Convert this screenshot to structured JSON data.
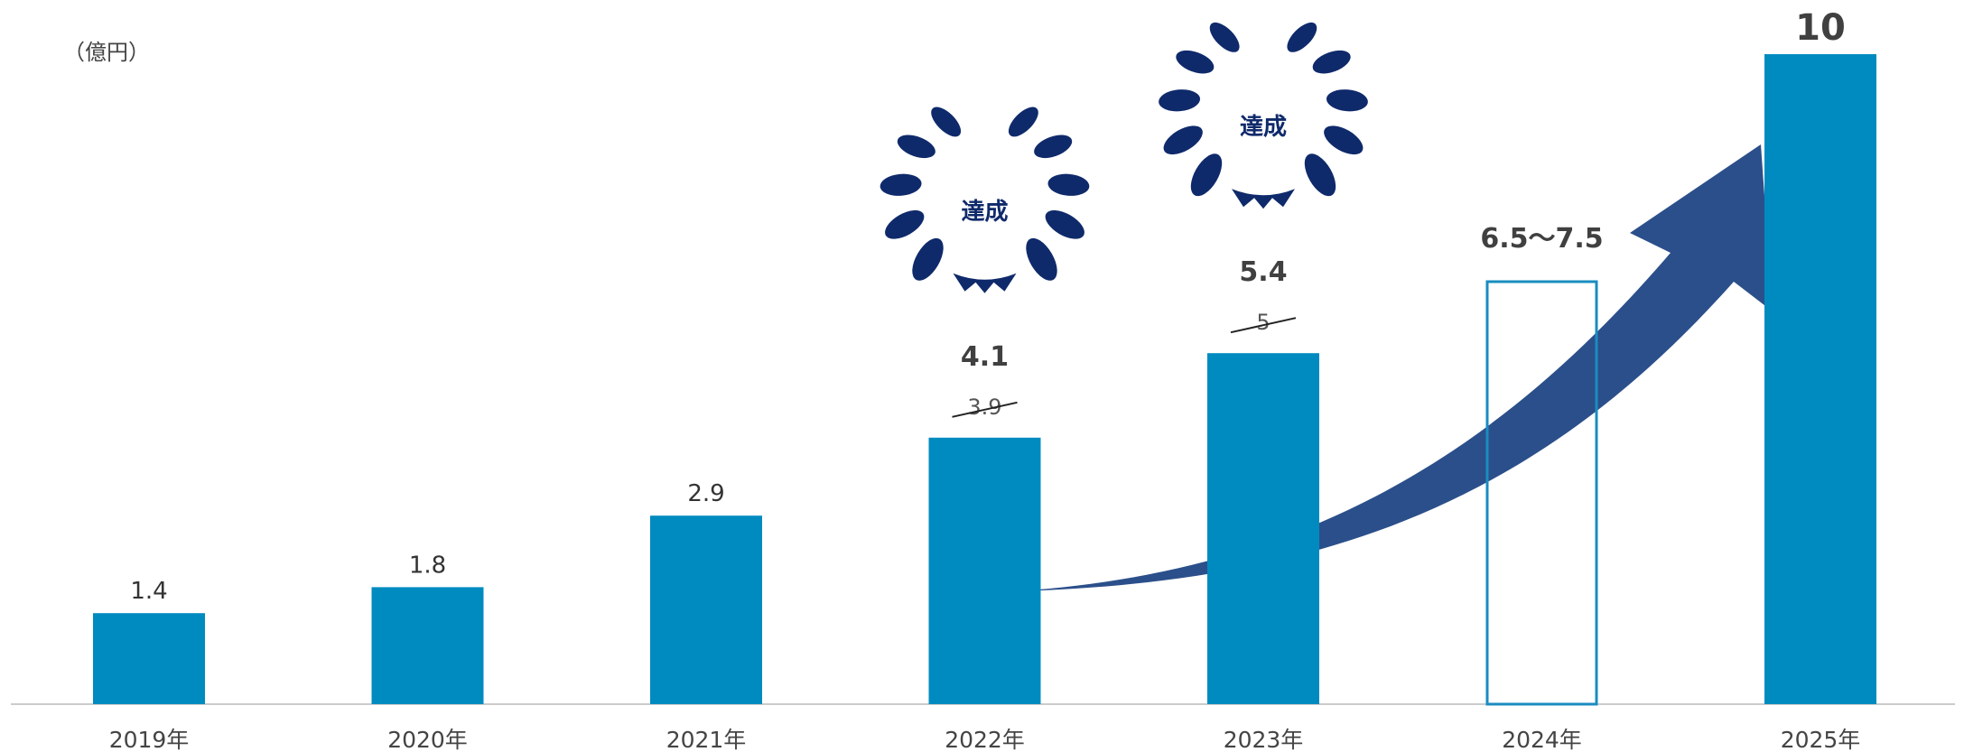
{
  "unit_label": "（億円）",
  "chart_data": {
    "type": "bar",
    "title": "",
    "xlabel": "",
    "ylabel": "",
    "unit": "（億円）",
    "categories": [
      "2019年",
      "2020年",
      "2021年",
      "2022年",
      "2023年",
      "2024年",
      "2025年"
    ],
    "values": [
      1.4,
      1.8,
      2.9,
      4.1,
      5.4,
      null,
      10
    ],
    "value_labels": [
      "1.4",
      "1.8",
      "2.9",
      "4.1",
      "5.4",
      "6.5〜7.5",
      "10"
    ],
    "struck_targets": [
      {
        "category": "2022年",
        "label": "3.9",
        "value": 3.9
      },
      {
        "category": "2023年",
        "label": "5",
        "value": 5
      }
    ],
    "range_target": {
      "category": "2024年",
      "low": 6.5,
      "high": 7.5,
      "label": "6.5〜7.5",
      "style": "outline"
    },
    "badges": [
      {
        "category": "2022年",
        "text": "達成"
      },
      {
        "category": "2023年",
        "text": "達成"
      }
    ],
    "ylim": [
      0,
      10
    ],
    "grid": false,
    "bar_color": "#008bc0",
    "outline_color": "#1a8cc0",
    "arrow_color": "#2b4f8a",
    "badge_color": "#0f2a6b"
  }
}
